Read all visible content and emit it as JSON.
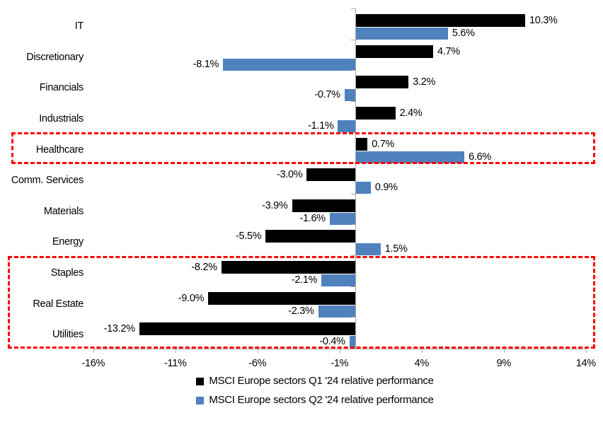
{
  "chart_data": {
    "type": "bar",
    "orientation": "horizontal",
    "title": "",
    "categories": [
      "IT",
      "Discretionary",
      "Financials",
      "Industrials",
      "Healthcare",
      "Comm. Services",
      "Materials",
      "Energy",
      "Staples",
      "Real Estate",
      "Utilities"
    ],
    "series": [
      {
        "name": "MSCI Europe sectors Q1 '24 relative performance",
        "color": "#000000",
        "values": [
          10.3,
          4.7,
          3.2,
          2.4,
          0.7,
          -3.0,
          -3.9,
          -5.5,
          -8.2,
          -9.0,
          -13.2
        ],
        "labels": [
          "10.3%",
          "4.7%",
          "3.2%",
          "2.4%",
          "0.7%",
          "-3.0%",
          "-3.9%",
          "-5.5%",
          "-8.2%",
          "-9.0%",
          "-13.2%"
        ]
      },
      {
        "name": "MSCI Europe sectors Q2 '24 relative performance",
        "color": "#4f81bd",
        "values": [
          5.6,
          -8.1,
          -0.7,
          -1.1,
          6.6,
          0.9,
          -1.6,
          1.5,
          -2.1,
          -2.3,
          -0.4
        ],
        "labels": [
          "5.6%",
          "-8.1%",
          "-0.7%",
          "-1.1%",
          "6.6%",
          "0.9%",
          "-1.6%",
          "1.5%",
          "-2.1%",
          "-2.3%",
          "-0.4%"
        ]
      }
    ],
    "x_ticks": [
      {
        "value": -16,
        "label": "-16%"
      },
      {
        "value": -11,
        "label": "-11%"
      },
      {
        "value": -6,
        "label": "-6%"
      },
      {
        "value": -1,
        "label": "-1%"
      },
      {
        "value": 4,
        "label": "4%"
      },
      {
        "value": 9,
        "label": "9%"
      },
      {
        "value": 14,
        "label": "14%"
      }
    ],
    "xlim": [
      -16,
      14
    ],
    "grid": false,
    "legend_position": "bottom",
    "axis_color": "#a6a6a6",
    "highlight_color": "#ff0000",
    "highlights": [
      {
        "name": "healthcare-box",
        "from": "Healthcare",
        "to": "Healthcare"
      },
      {
        "name": "defensives-box",
        "from": "Staples",
        "to": "Utilities"
      }
    ]
  }
}
